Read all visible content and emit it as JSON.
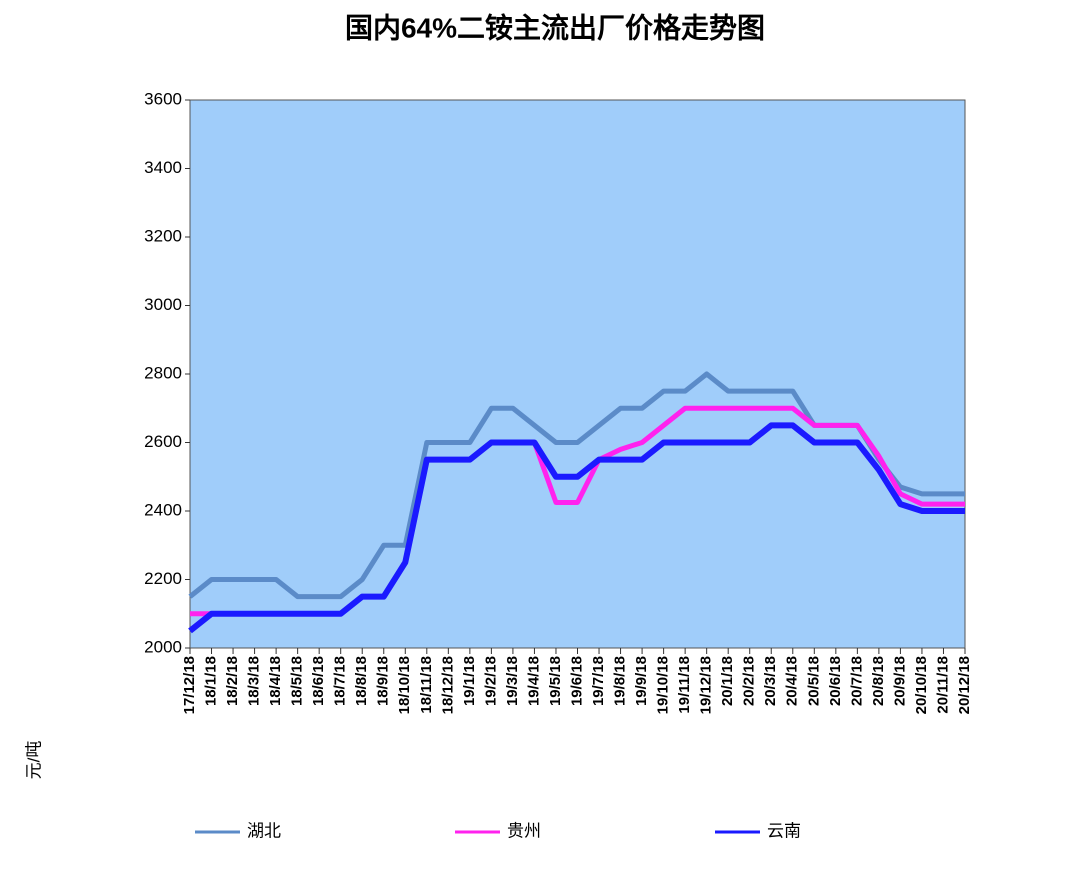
{
  "chart_data": {
    "type": "line",
    "title": "国内64%二铵主流出厂价格走势图",
    "y_label": "元/吨",
    "categories": [
      "17/12/18",
      "18/1/18",
      "18/2/18",
      "18/3/18",
      "18/4/18",
      "18/5/18",
      "18/6/18",
      "18/7/18",
      "18/8/18",
      "18/9/18",
      "18/10/18",
      "18/11/18",
      "18/12/18",
      "19/1/18",
      "19/2/18",
      "19/3/18",
      "19/4/18",
      "19/5/18",
      "19/6/18",
      "19/7/18",
      "19/8/18",
      "19/9/18",
      "19/10/18",
      "19/11/18",
      "19/12/18",
      "20/1/18",
      "20/2/18",
      "20/3/18",
      "20/4/18",
      "20/5/18",
      "20/6/18",
      "20/7/18",
      "20/8/18",
      "20/9/18",
      "20/10/18",
      "20/11/18",
      "20/12/18"
    ],
    "series": [
      {
        "name": "湖北",
        "color": "#5b8bc8",
        "values": [
          2150,
          2200,
          2200,
          2200,
          2200,
          2150,
          2150,
          2150,
          2200,
          2300,
          2300,
          2600,
          2600,
          2600,
          2700,
          2700,
          2650,
          2600,
          2600,
          2650,
          2700,
          2700,
          2750,
          2750,
          2800,
          2750,
          2750,
          2750,
          2750,
          2650,
          2650,
          2650,
          2550,
          2470,
          2450,
          2450,
          2450
        ]
      },
      {
        "name": "贵州",
        "color": "#ff22ee",
        "values": [
          2100,
          2100,
          2100,
          2100,
          2100,
          2100,
          2100,
          2100,
          2150,
          2150,
          2250,
          2550,
          2550,
          2550,
          2600,
          2600,
          2600,
          2425,
          2425,
          2550,
          2580,
          2600,
          2650,
          2700,
          2700,
          2700,
          2700,
          2700,
          2700,
          2650,
          2650,
          2650,
          2560,
          2450,
          2420,
          2420,
          2420
        ]
      },
      {
        "name": "云南",
        "color": "#1a1aff",
        "values": [
          2050,
          2100,
          2100,
          2100,
          2100,
          2100,
          2100,
          2100,
          2150,
          2150,
          2250,
          2550,
          2550,
          2550,
          2600,
          2600,
          2600,
          2500,
          2500,
          2550,
          2550,
          2550,
          2600,
          2600,
          2600,
          2600,
          2600,
          2650,
          2650,
          2600,
          2600,
          2600,
          2520,
          2420,
          2400,
          2400,
          2400
        ]
      }
    ],
    "ylim": [
      2000,
      3600
    ],
    "yticks": [
      2000,
      2200,
      2400,
      2600,
      2800,
      3000,
      3200,
      3400,
      3600
    ],
    "plot_background": "#a0cdfa"
  }
}
